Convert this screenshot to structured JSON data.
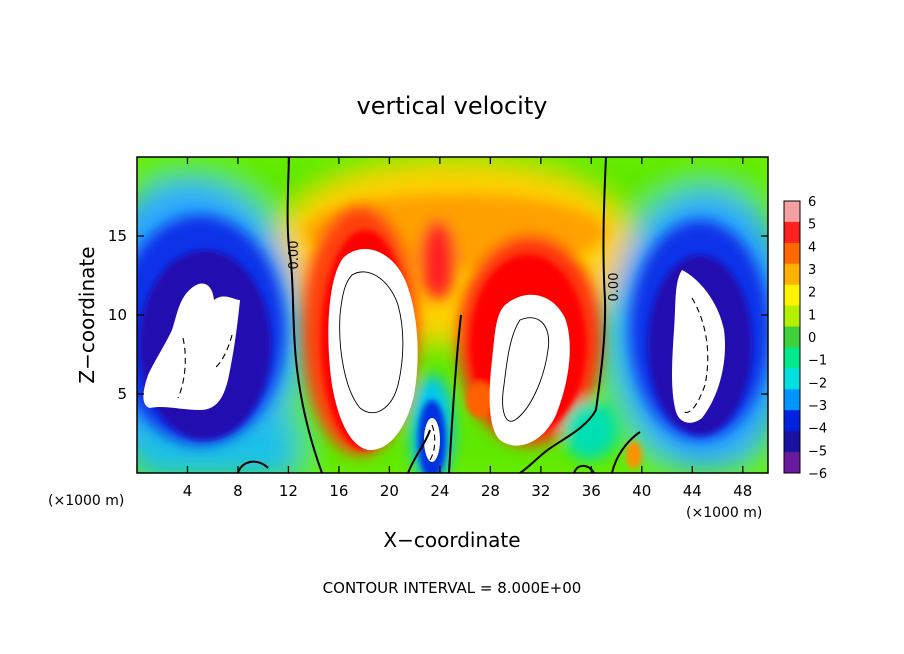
{
  "chart_data": {
    "type": "heatmap",
    "title": "vertical velocity",
    "xlabel": "X−coordinate",
    "ylabel": "Z−coordinate",
    "x_unit_left": "(×1000 m)",
    "x_unit_right": "(×1000 m)",
    "xlim": [
      0,
      50
    ],
    "ylim": [
      0,
      20
    ],
    "x_ticks": [
      4,
      8,
      12,
      16,
      20,
      24,
      28,
      32,
      36,
      40,
      44,
      48
    ],
    "y_ticks": [
      5,
      10,
      15
    ],
    "x_tick_labels": [
      "4",
      "8",
      "12",
      "16",
      "20",
      "24",
      "28",
      "32",
      "36",
      "40",
      "44",
      "48"
    ],
    "y_tick_labels": [
      "5",
      "10",
      "15"
    ],
    "footer": "CONTOUR INTERVAL = 8.000E+00",
    "colorbar": {
      "min": -6,
      "max": 6,
      "tick_values": [
        6,
        5,
        4,
        3,
        2,
        1,
        0,
        -1,
        -2,
        -3,
        -4,
        -5,
        -6
      ],
      "tick_labels": [
        "6",
        "5",
        "4",
        "3",
        "2",
        "1",
        "0",
        "−1",
        "−2",
        "−3",
        "−4",
        "−5",
        "−6"
      ],
      "colors": [
        "#f4a0a0",
        "#ff2020",
        "#ff6a00",
        "#ffb000",
        "#fff200",
        "#b4ef00",
        "#3fd23a",
        "#00e88c",
        "#00dfe0",
        "#0094ff",
        "#0022e0",
        "#1a12a0",
        "#6a1aa0"
      ]
    },
    "contour_labels": [
      "0.00",
      "0.00"
    ],
    "features": [
      {
        "name": "left-downdraft",
        "x": 4.5,
        "z": 7.5,
        "value": -6
      },
      {
        "name": "central-updraft-a",
        "x": 18.5,
        "z": 8.5,
        "value": 6
      },
      {
        "name": "narrow-downdraft",
        "x": 23.5,
        "z": 2.5,
        "value": -6
      },
      {
        "name": "central-updraft-b",
        "x": 30.5,
        "z": 7.5,
        "value": 6
      },
      {
        "name": "right-downdraft",
        "x": 44.5,
        "z": 8.0,
        "value": -6
      }
    ]
  }
}
